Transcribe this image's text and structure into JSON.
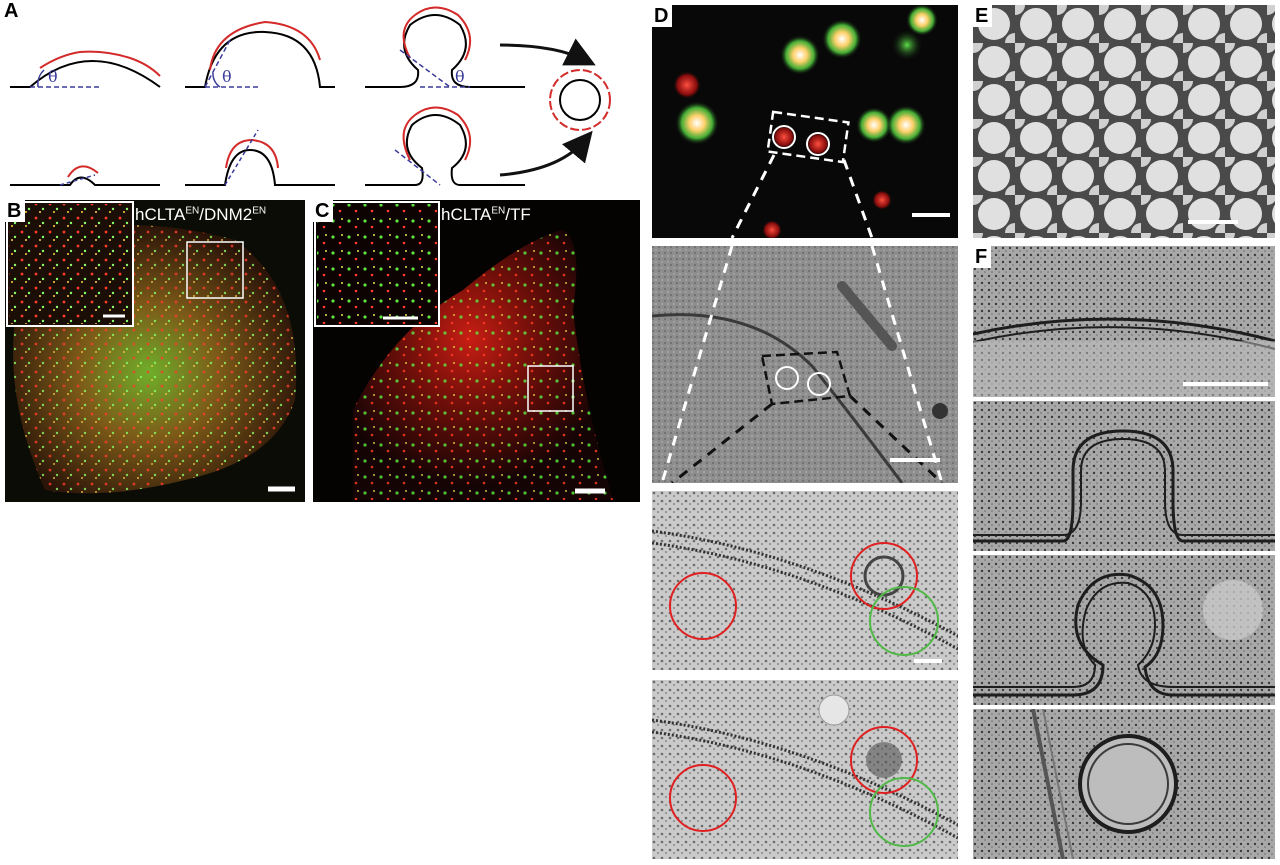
{
  "panels": {
    "a": {
      "label": "A",
      "angle_symbol": "θ"
    },
    "b": {
      "label": "B",
      "cap_main_1": "hCLTA",
      "cap_sup_1": "EN",
      "cap_main_2": "/DNM2",
      "cap_sup_2": "EN"
    },
    "c": {
      "label": "C",
      "cap_main_1": "hCLTA",
      "cap_sup_1": "EN",
      "cap_main_2": "/TF"
    },
    "d": {
      "label": "D"
    },
    "e": {
      "label": "E"
    },
    "f": {
      "label": "F"
    }
  },
  "colors": {
    "clathrin": "#d42a2a",
    "membrane": "#000000",
    "angle": "#3b3b9a",
    "fluor_red": "#e8231e",
    "fluor_green": "#3cc83c",
    "em_circle_red": "#e02020",
    "em_circle_green": "#52b848"
  }
}
